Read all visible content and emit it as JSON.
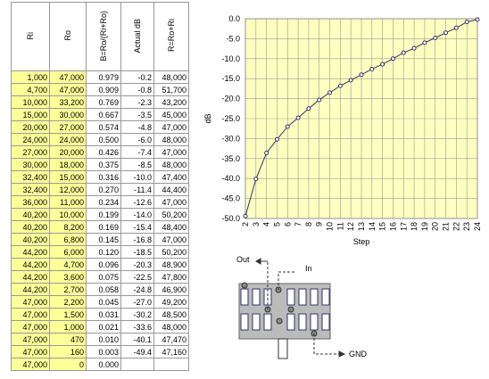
{
  "table": {
    "header": [
      "Ri",
      "Ro",
      "B=Ro/(Ri+Ro)",
      "Actual dB",
      "R=Ro+Ri"
    ],
    "rows": [
      [
        "1,000",
        "47,000",
        "0.979",
        "-0.2",
        "48,000"
      ],
      [
        "4,700",
        "47,000",
        "0.909",
        "-0.8",
        "51,700"
      ],
      [
        "10,000",
        "33,200",
        "0.769",
        "-2.3",
        "43,200"
      ],
      [
        "15,000",
        "30,000",
        "0.667",
        "-3.5",
        "45,000"
      ],
      [
        "20,000",
        "27,000",
        "0.574",
        "-4.8",
        "47,000"
      ],
      [
        "24,000",
        "24,000",
        "0.500",
        "-6.0",
        "48,000"
      ],
      [
        "27,000",
        "20,000",
        "0.426",
        "-7.4",
        "47,000"
      ],
      [
        "30,000",
        "18,000",
        "0.375",
        "-8.5",
        "48,000"
      ],
      [
        "32,400",
        "15,000",
        "0.316",
        "-10.0",
        "47,400"
      ],
      [
        "32,400",
        "12,000",
        "0.270",
        "-11.4",
        "44,400"
      ],
      [
        "36,000",
        "11,000",
        "0.234",
        "-12.6",
        "47,000"
      ],
      [
        "40,200",
        "10,000",
        "0.199",
        "-14.0",
        "50,200"
      ],
      [
        "40,200",
        "8,200",
        "0.169",
        "-15.4",
        "48,400"
      ],
      [
        "40,200",
        "6,800",
        "0.145",
        "-16.8",
        "47,000"
      ],
      [
        "44,200",
        "6,000",
        "0.120",
        "-18.5",
        "50,200"
      ],
      [
        "44,200",
        "4,700",
        "0.096",
        "-20.3",
        "48,900"
      ],
      [
        "44,200",
        "3,600",
        "0.075",
        "-22.5",
        "47,800"
      ],
      [
        "44,200",
        "2,700",
        "0.058",
        "-24.8",
        "46,900"
      ],
      [
        "47,000",
        "2,200",
        "0.045",
        "-27.0",
        "49,200"
      ],
      [
        "47,000",
        "1,500",
        "0.031",
        "-30.2",
        "48,500"
      ],
      [
        "47,000",
        "1,000",
        "0.021",
        "-33.6",
        "48,000"
      ],
      [
        "47,000",
        "470",
        "0.010",
        "-40.1",
        "47,470"
      ],
      [
        "47,000",
        "160",
        "0.003",
        "-49.4",
        "47,160"
      ],
      [
        "47,000",
        "0",
        "0.000",
        null,
        null
      ]
    ]
  },
  "chart_data": {
    "type": "line",
    "x_label": "Step",
    "y_label": "dB",
    "x": [
      2,
      3,
      4,
      5,
      6,
      7,
      8,
      9,
      10,
      11,
      12,
      13,
      14,
      15,
      16,
      17,
      18,
      19,
      20,
      21,
      22,
      23,
      24
    ],
    "values": [
      -49.4,
      -40.1,
      -33.6,
      -30.2,
      -27.0,
      -24.8,
      -22.5,
      -20.3,
      -18.5,
      -16.8,
      -15.4,
      -14.0,
      -12.6,
      -11.4,
      -10.0,
      -8.5,
      -7.4,
      -6.0,
      -4.8,
      -3.5,
      -2.3,
      -0.8,
      -0.2
    ],
    "color": "#333366",
    "background": "#ffffc0",
    "grid": true,
    "xlim": [
      2,
      24
    ],
    "xticks": [
      2,
      3,
      4,
      5,
      6,
      7,
      8,
      9,
      10,
      11,
      12,
      13,
      14,
      15,
      16,
      17,
      18,
      19,
      20,
      21,
      22,
      23,
      24
    ],
    "ylim": [
      -50,
      0
    ],
    "yticks": [
      {
        "value": -50,
        "label": "-50.0"
      },
      {
        "value": -45,
        "label": "-45.0"
      },
      {
        "value": -40,
        "label": "-40.0"
      },
      {
        "value": -35,
        "label": "-35.0"
      },
      {
        "value": -30,
        "label": "-30.0"
      },
      {
        "value": -25,
        "label": "-25.0"
      },
      {
        "value": -20,
        "label": "-20.0"
      },
      {
        "value": -15,
        "label": "-15.0"
      },
      {
        "value": -10,
        "label": "-10.0"
      },
      {
        "value": -5,
        "label": "-5.0"
      },
      {
        "value": 0,
        "label": "0.0"
      }
    ]
  },
  "diagram": {
    "out": "Out",
    "in": "In",
    "gnd": "GND"
  }
}
